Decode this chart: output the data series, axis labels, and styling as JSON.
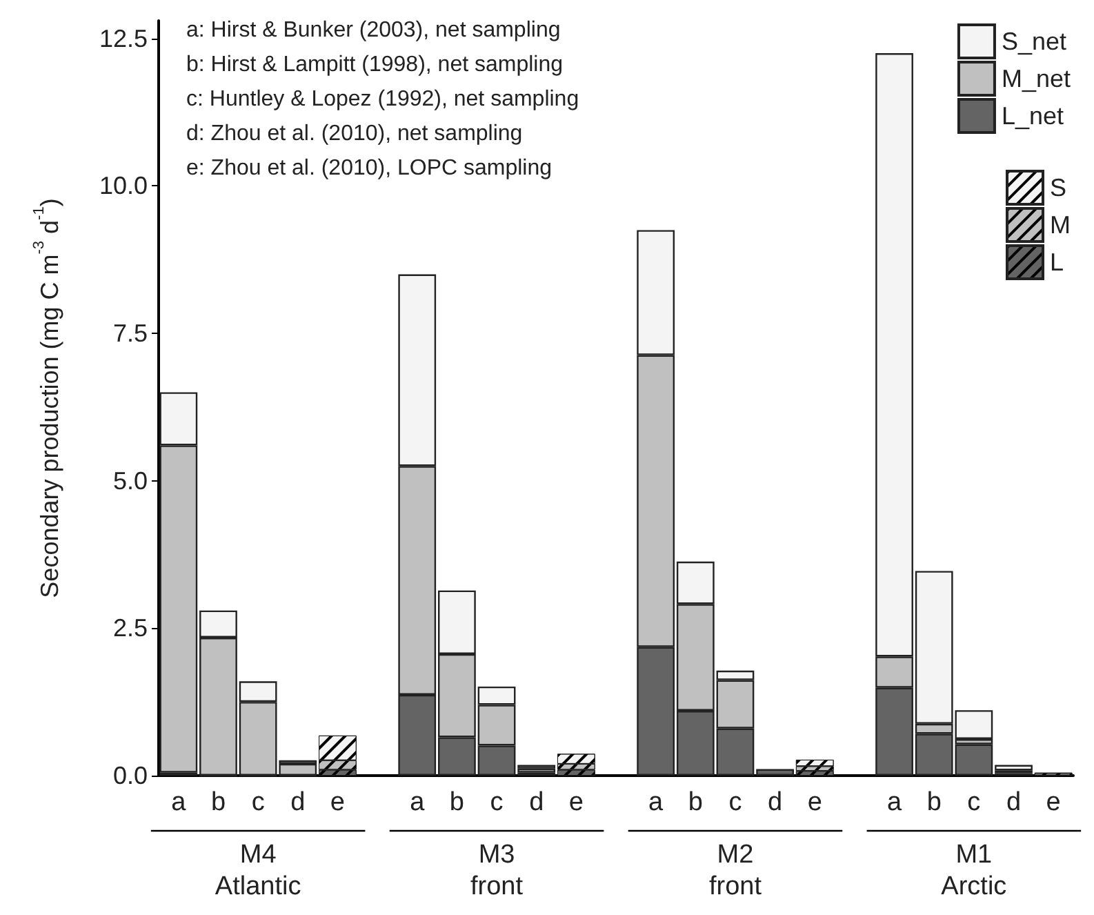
{
  "chart_data": {
    "type": "bar",
    "stacked": true,
    "ylabel": "Secondary production (mg C m$^{-3}$ d$^{-1}$)",
    "categories": [
      "a",
      "b",
      "c",
      "d",
      "e",
      null,
      "a",
      "b",
      "c",
      "d",
      "e",
      null,
      "a",
      "b",
      "c",
      "d",
      "e",
      null,
      "a",
      "b",
      "c",
      "d",
      "e"
    ],
    "series": [
      {
        "name": "L_net",
        "color": "#646464",
        "values": [
          0.05,
          0,
          0,
          0,
          null,
          null,
          1.37,
          0.65,
          0.51,
          0.05,
          null,
          null,
          2.18,
          1.1,
          0.8,
          0.11,
          null,
          null,
          1.49,
          0.71,
          0.53,
          0.04,
          null
        ]
      },
      {
        "name": "M_net",
        "color": "#c0c0c0",
        "values": [
          5.55,
          2.34,
          1.25,
          0.2,
          null,
          null,
          3.88,
          1.41,
          0.69,
          0.07,
          null,
          null,
          4.95,
          1.81,
          0.82,
          null,
          null,
          null,
          0.53,
          0.17,
          0.09,
          0.05,
          null
        ]
      },
      {
        "name": "S_net",
        "color": "#f4f4f4",
        "values": [
          0.9,
          0.46,
          0.35,
          0.06,
          null,
          null,
          3.25,
          1.08,
          0.31,
          0.06,
          null,
          null,
          2.12,
          0.72,
          0.16,
          null,
          null,
          null,
          10.23,
          2.59,
          0.49,
          0.09,
          null
        ]
      },
      {
        "name": "L",
        "color": "#646464",
        "values": [
          null,
          null,
          null,
          null,
          0.1,
          null,
          null,
          null,
          null,
          null,
          0.1,
          null,
          null,
          null,
          null,
          null,
          0.08,
          null,
          null,
          null,
          null,
          null,
          0.05
        ]
      },
      {
        "name": "M",
        "color": "#c0c0c0",
        "values": [
          null,
          null,
          null,
          null,
          0.16,
          null,
          null,
          null,
          null,
          null,
          0.1,
          null,
          null,
          null,
          null,
          null,
          0.08,
          null,
          null,
          null,
          null,
          null,
          null
        ]
      },
      {
        "name": "S",
        "color": "#f4f4f4",
        "values": [
          null,
          null,
          null,
          null,
          0.42,
          null,
          null,
          null,
          null,
          null,
          0.17,
          null,
          null,
          null,
          null,
          null,
          0.11,
          null,
          null,
          null,
          null,
          null,
          null
        ]
      }
    ],
    "ylim": [
      0,
      12.8
    ],
    "yticks": [
      {
        "value": 0,
        "label": "0.0"
      },
      {
        "value": 2.5,
        "label": "2.5"
      },
      {
        "value": 5,
        "label": "5.0"
      },
      {
        "value": 7.5,
        "label": "7.5"
      },
      {
        "value": 10,
        "label": "10.0"
      },
      {
        "value": 12.5,
        "label": "12.5"
      }
    ],
    "grid": false,
    "legend": "top right",
    "annotations": [
      "a: Hirst & Bunker (2003), net sampling",
      "b: Hirst & Lampitt (1998), net sampling",
      "c: Huntley & Lopez (1992), net sampling",
      "d: Zhou et al. (2010), net sampling",
      "e: Zhou et al. (2010), LOPC sampling",
      "M4\nAtlantic",
      "M3\nfront",
      "M2\nfront",
      "M1\nArctic"
    ]
  }
}
